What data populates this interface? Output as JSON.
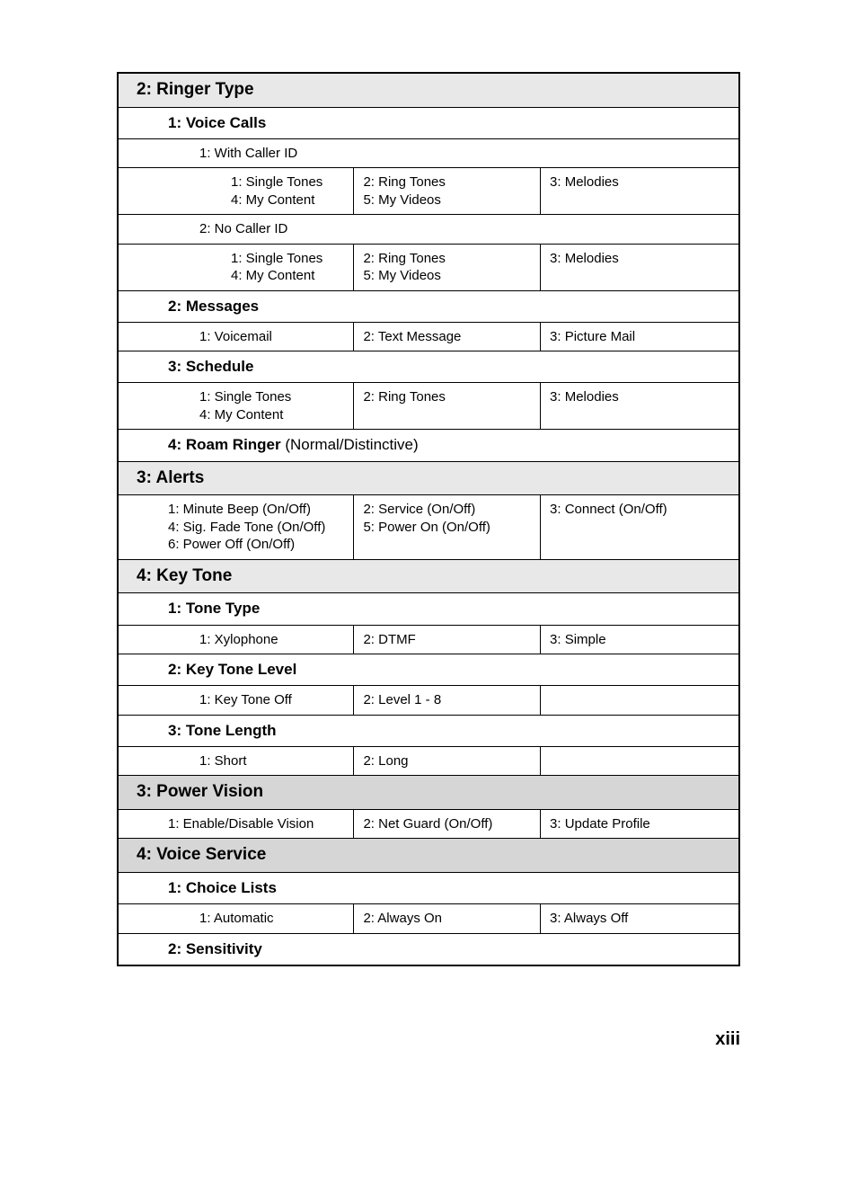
{
  "ringerType": {
    "title": "2: Ringer Type",
    "voiceCalls": {
      "title": "1: Voice Calls",
      "withCallerId": {
        "title": "1: With Caller ID",
        "opt1": "1: Single Tones",
        "opt2": "2: Ring Tones",
        "opt3": "3: Melodies",
        "opt4": "4: My Content",
        "opt5": "5: My Videos"
      },
      "noCallerId": {
        "title": "2: No Caller ID",
        "opt1": "1: Single Tones",
        "opt2": "2: Ring Tones",
        "opt3": "3: Melodies",
        "opt4": "4: My Content",
        "opt5": "5: My Videos"
      }
    },
    "messages": {
      "title": "2: Messages",
      "opt1": "1: Voicemail",
      "opt2": "2: Text Message",
      "opt3": "3: Picture Mail"
    },
    "schedule": {
      "title": "3: Schedule",
      "opt1": "1: Single Tones",
      "opt2": "2: Ring Tones",
      "opt3": "3: Melodies",
      "opt4": "4: My Content"
    },
    "roamRinger": {
      "title_bold": "4: Roam Ringer ",
      "title_norm": "(Normal/Distinctive)"
    }
  },
  "alerts": {
    "title": "3: Alerts",
    "opt1": "1: Minute Beep (On/Off)",
    "opt2": "2: Service (On/Off)",
    "opt3": "3: Connect (On/Off)",
    "opt4": "4: Sig. Fade Tone (On/Off)",
    "opt5": "5: Power On (On/Off)",
    "opt6": "6: Power Off (On/Off)"
  },
  "keyTone": {
    "title": "4: Key Tone",
    "toneType": {
      "title": "1: Tone Type",
      "opt1": "1: Xylophone",
      "opt2": "2: DTMF",
      "opt3": "3: Simple"
    },
    "keyToneLevel": {
      "title": "2: Key Tone Level",
      "opt1": "1: Key Tone Off",
      "opt2": "2: Level 1 - 8"
    },
    "toneLength": {
      "title": "3: Tone Length",
      "opt1": "1: Short",
      "opt2": "2: Long"
    }
  },
  "powerVision": {
    "title": "3: Power Vision",
    "opt1": "1: Enable/Disable Vision",
    "opt2": "2: Net Guard (On/Off)",
    "opt3": "3: Update Profile"
  },
  "voiceService": {
    "title": "4: Voice Service",
    "choiceLists": {
      "title": "1: Choice Lists",
      "opt1": "1: Automatic",
      "opt2": "2: Always On",
      "opt3": "3: Always Off"
    },
    "sensitivity": {
      "title": "2: Sensitivity"
    }
  },
  "pageNumber": "xiii",
  "colors": {
    "border": "#000000",
    "bg_light": "#e8e8e8",
    "bg_grey": "#d6d6d6",
    "text": "#000000"
  },
  "fonts": {
    "h1": 19,
    "h2": 17,
    "body": 15,
    "footer": 20
  }
}
